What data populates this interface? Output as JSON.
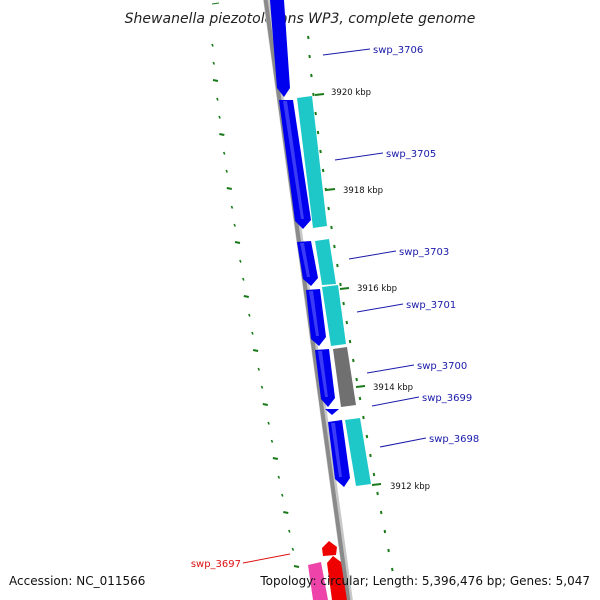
{
  "title": "Shewanella piezotolerans WP3, complete genome",
  "footer": {
    "accession": "Accession: NC_011566",
    "topology": "Topology: circular; Length: 5,396,476 bp; Genes: 5,047"
  },
  "colors": {
    "backbone": "#8a8a8a",
    "tick": "#1a7a1a",
    "label_blue": "#1a1aaa",
    "label_red": "#dd1111",
    "gene_blue": "#0000ee",
    "gene_cyan": "#1fc8c8",
    "gene_gray": "#707070",
    "gene_red": "#ee0000",
    "gene_pink": "#ee44aa"
  },
  "ticks": [
    {
      "label": "3920 kbp"
    },
    {
      "label": "3918 kbp"
    },
    {
      "label": "3916 kbp"
    },
    {
      "label": "3914 kbp"
    },
    {
      "label": "3912 kbp"
    }
  ],
  "genes": [
    {
      "label": "swp_3706",
      "color": "label_blue"
    },
    {
      "label": "swp_3705",
      "color": "label_blue"
    },
    {
      "label": "swp_3703",
      "color": "label_blue"
    },
    {
      "label": "swp_3701",
      "color": "label_blue"
    },
    {
      "label": "swp_3700",
      "color": "label_blue"
    },
    {
      "label": "swp_3699",
      "color": "label_blue"
    },
    {
      "label": "swp_3698",
      "color": "label_blue"
    },
    {
      "label": "swp_3697",
      "color": "label_red"
    }
  ]
}
